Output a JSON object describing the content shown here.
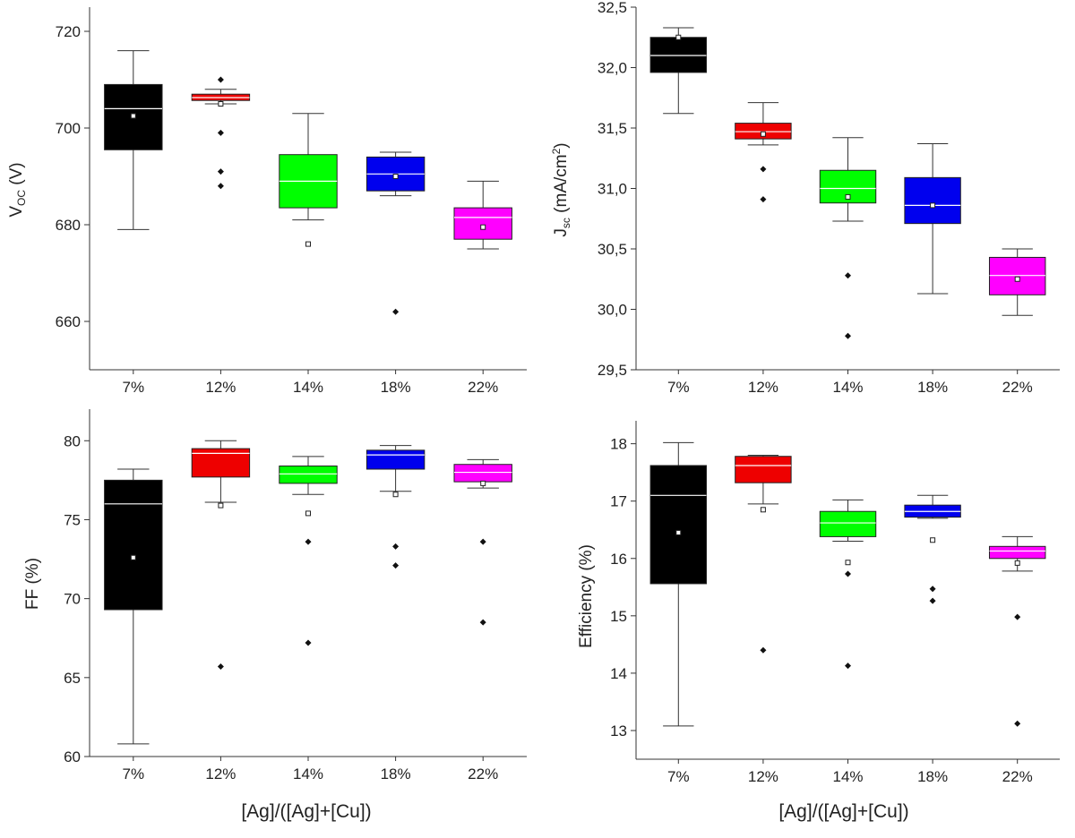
{
  "figure": {
    "common_xlabel": "[Ag]/([Ag]+[Cu])"
  },
  "chart_data": [
    {
      "type": "box",
      "id": "voc",
      "ylabel_main": "V",
      "ylabel_sub": "OC",
      "ylabel_rest": " (V)",
      "ylim": [
        650,
        725
      ],
      "yticks": [
        660,
        680,
        700,
        720
      ],
      "ytick_labels": [
        "660",
        "680",
        "700",
        "720"
      ],
      "categories": [
        "7%",
        "12%",
        "14%",
        "18%",
        "22%"
      ],
      "colors": [
        "#000000",
        "#ee0000",
        "#00ff00",
        "#0000ee",
        "#ff00ff"
      ],
      "boxes": [
        {
          "whisker_low": 679,
          "q1": 695.5,
          "median": 704,
          "q3": 709,
          "whisker_high": 716,
          "mean": 702.5,
          "outliers": []
        },
        {
          "whisker_low": 705,
          "q1": 705.7,
          "median": 706.3,
          "q3": 707,
          "whisker_high": 708,
          "mean": 705,
          "outliers": [
            710,
            699,
            691,
            688
          ]
        },
        {
          "whisker_low": 681,
          "q1": 683.5,
          "median": 689,
          "q3": 694.5,
          "whisker_high": 703,
          "mean": 676,
          "outliers": []
        },
        {
          "whisker_low": 686,
          "q1": 687,
          "median": 690.5,
          "q3": 694,
          "whisker_high": 695,
          "mean": 690,
          "outliers": [
            662
          ]
        },
        {
          "whisker_low": 675,
          "q1": 677,
          "median": 681.5,
          "q3": 683.5,
          "whisker_high": 689,
          "mean": 679.5,
          "outliers": []
        }
      ]
    },
    {
      "type": "box",
      "id": "jsc",
      "ylabel_main": "J",
      "ylabel_sub": "sc",
      "ylabel_rest": " (mA/cm",
      "ylabel_sup": "2",
      "ylabel_close": ")",
      "ylim": [
        29.5,
        32.5
      ],
      "yticks": [
        29.5,
        30.0,
        30.5,
        31.0,
        31.5,
        32.0,
        32.5
      ],
      "ytick_labels": [
        "29,5",
        "30,0",
        "30,5",
        "31,0",
        "31,5",
        "32,0",
        "32,5"
      ],
      "categories": [
        "7%",
        "12%",
        "14%",
        "18%",
        "22%"
      ],
      "colors": [
        "#000000",
        "#ee0000",
        "#00ff00",
        "#0000ee",
        "#ff00ff"
      ],
      "boxes": [
        {
          "whisker_low": 31.62,
          "q1": 31.96,
          "median": 32.1,
          "q3": 32.25,
          "whisker_high": 32.33,
          "mean": 32.25,
          "outliers": []
        },
        {
          "whisker_low": 31.36,
          "q1": 31.41,
          "median": 31.47,
          "q3": 31.54,
          "whisker_high": 31.71,
          "mean": 31.45,
          "outliers": [
            31.16,
            30.91
          ]
        },
        {
          "whisker_low": 30.73,
          "q1": 30.88,
          "median": 31.0,
          "q3": 31.15,
          "whisker_high": 31.42,
          "mean": 30.93,
          "outliers": [
            30.28,
            29.78
          ]
        },
        {
          "whisker_low": 30.13,
          "q1": 30.71,
          "median": 30.86,
          "q3": 31.09,
          "whisker_high": 31.37,
          "mean": 30.86,
          "outliers": []
        },
        {
          "whisker_low": 29.95,
          "q1": 30.12,
          "median": 30.28,
          "q3": 30.43,
          "whisker_high": 30.5,
          "mean": 30.25,
          "outliers": []
        }
      ]
    },
    {
      "type": "box",
      "id": "ff",
      "ylabel_main": "FF (%)",
      "ylim": [
        60,
        82
      ],
      "yticks": [
        60,
        65,
        70,
        75,
        80
      ],
      "ytick_labels": [
        "60",
        "65",
        "70",
        "75",
        "80"
      ],
      "categories": [
        "7%",
        "12%",
        "14%",
        "18%",
        "22%"
      ],
      "colors": [
        "#000000",
        "#ee0000",
        "#00ff00",
        "#0000ee",
        "#ff00ff"
      ],
      "boxes": [
        {
          "whisker_low": 60.8,
          "q1": 69.3,
          "median": 76.0,
          "q3": 77.5,
          "whisker_high": 78.2,
          "mean": 72.6,
          "outliers": []
        },
        {
          "whisker_low": 76.1,
          "q1": 77.7,
          "median": 79.2,
          "q3": 79.5,
          "whisker_high": 80.0,
          "mean": 75.9,
          "outliers": [
            65.7
          ]
        },
        {
          "whisker_low": 76.6,
          "q1": 77.3,
          "median": 77.9,
          "q3": 78.4,
          "whisker_high": 79.0,
          "mean": 75.4,
          "outliers": [
            73.6,
            67.2
          ]
        },
        {
          "whisker_low": 76.8,
          "q1": 78.2,
          "median": 79.1,
          "q3": 79.4,
          "whisker_high": 79.7,
          "mean": 76.6,
          "outliers": [
            73.3,
            72.1
          ]
        },
        {
          "whisker_low": 77.0,
          "q1": 77.4,
          "median": 78.0,
          "q3": 78.5,
          "whisker_high": 78.8,
          "mean": 77.3,
          "outliers": [
            73.6,
            68.5
          ]
        }
      ]
    },
    {
      "type": "box",
      "id": "efficiency",
      "ylabel_main": "Efficiency (%)",
      "ylim": [
        12.5,
        18.4
      ],
      "yticks": [
        13,
        14,
        15,
        16,
        17,
        18
      ],
      "ytick_labels": [
        "13",
        "14",
        "15",
        "16",
        "17",
        "18"
      ],
      "categories": [
        "7%",
        "12%",
        "14%",
        "18%",
        "22%"
      ],
      "colors": [
        "#000000",
        "#ee0000",
        "#00ff00",
        "#0000ee",
        "#ff00ff"
      ],
      "boxes": [
        {
          "whisker_low": 13.08,
          "q1": 15.56,
          "median": 17.1,
          "q3": 17.62,
          "whisker_high": 18.02,
          "mean": 16.45,
          "outliers": []
        },
        {
          "whisker_low": 16.95,
          "q1": 17.32,
          "median": 17.62,
          "q3": 17.78,
          "whisker_high": 17.8,
          "mean": 16.85,
          "outliers": [
            14.4
          ]
        },
        {
          "whisker_low": 16.3,
          "q1": 16.38,
          "median": 16.62,
          "q3": 16.82,
          "whisker_high": 17.02,
          "mean": 15.93,
          "outliers": [
            15.73,
            14.13
          ]
        },
        {
          "whisker_low": 16.7,
          "q1": 16.72,
          "median": 16.82,
          "q3": 16.93,
          "whisker_high": 17.1,
          "mean": 16.32,
          "outliers": [
            15.47,
            15.26
          ]
        },
        {
          "whisker_low": 15.78,
          "q1": 16.0,
          "median": 16.13,
          "q3": 16.21,
          "whisker_high": 16.38,
          "mean": 15.92,
          "outliers": [
            14.98,
            13.12
          ]
        }
      ]
    }
  ]
}
